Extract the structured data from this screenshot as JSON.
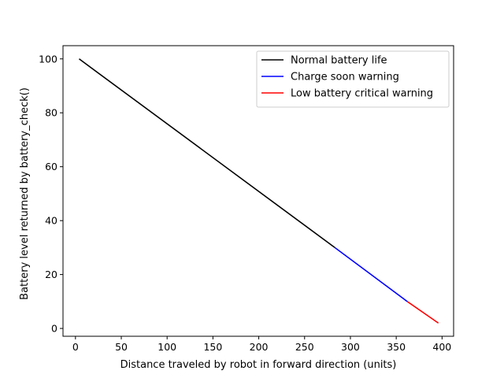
{
  "chart_data": {
    "type": "line",
    "title": "",
    "xlabel": "Distance traveled by robot in forward direction (units)",
    "ylabel": "Battery level returned by battery_check()",
    "xlim": [
      -13.6,
      412.6
    ],
    "ylim": [
      -2.9,
      104.9
    ],
    "xticks": [
      0,
      50,
      100,
      150,
      200,
      250,
      300,
      350,
      400
    ],
    "yticks": [
      0,
      20,
      40,
      60,
      80,
      100
    ],
    "grid": false,
    "legend_position": "top-right",
    "series": [
      {
        "name": "Normal battery life",
        "color": "#000000",
        "x": [
          4,
          283
        ],
        "y": [
          100,
          30
        ]
      },
      {
        "name": "Charge soon warning",
        "color": "#0000ff",
        "x": [
          283,
          362
        ],
        "y": [
          30,
          10
        ]
      },
      {
        "name": "Low battery critical warning",
        "color": "#ff0000",
        "x": [
          362,
          396
        ],
        "y": [
          10,
          2
        ]
      }
    ]
  }
}
